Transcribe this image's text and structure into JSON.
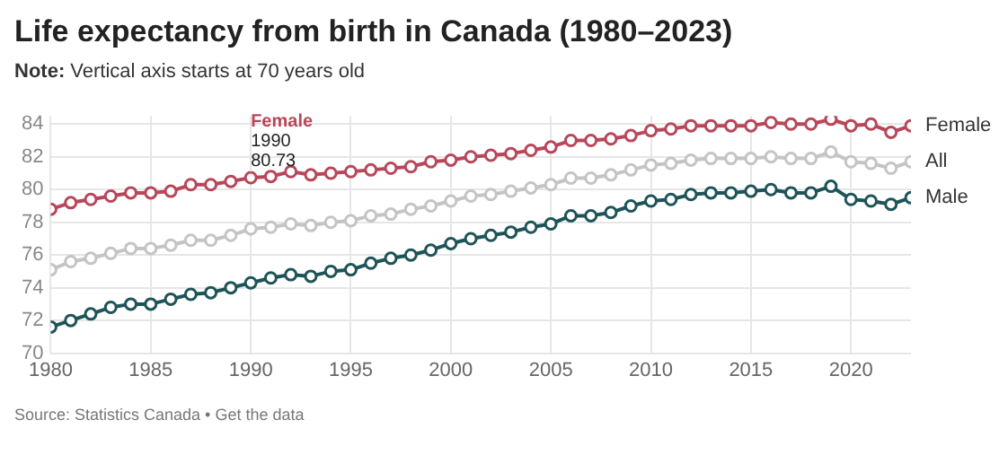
{
  "chart_data": {
    "type": "line",
    "title": "Life expectancy from birth in Canada (1980–2023)",
    "subtitle": "Note: Vertical axis starts at 70 years old",
    "x": [
      1980,
      1981,
      1982,
      1983,
      1984,
      1985,
      1986,
      1987,
      1988,
      1989,
      1990,
      1991,
      1992,
      1993,
      1994,
      1995,
      1996,
      1997,
      1998,
      1999,
      2000,
      2001,
      2002,
      2003,
      2004,
      2005,
      2006,
      2007,
      2008,
      2009,
      2010,
      2011,
      2012,
      2013,
      2014,
      2015,
      2016,
      2017,
      2018,
      2019,
      2020,
      2021,
      2022,
      2023
    ],
    "series": [
      {
        "name": "Female",
        "color": "#b8475a",
        "values": [
          78.8,
          79.2,
          79.4,
          79.6,
          79.8,
          79.8,
          79.9,
          80.3,
          80.3,
          80.5,
          80.73,
          80.8,
          81.1,
          80.9,
          81.0,
          81.1,
          81.2,
          81.3,
          81.4,
          81.7,
          81.8,
          82.0,
          82.1,
          82.2,
          82.4,
          82.6,
          83.0,
          83.0,
          83.1,
          83.3,
          83.6,
          83.7,
          83.9,
          83.9,
          83.9,
          83.9,
          84.1,
          84.0,
          84.0,
          84.3,
          83.9,
          84.0,
          83.5,
          83.9
        ]
      },
      {
        "name": "All",
        "color": "#c4c4c4",
        "values": [
          75.1,
          75.6,
          75.8,
          76.1,
          76.4,
          76.4,
          76.6,
          76.9,
          76.9,
          77.2,
          77.6,
          77.7,
          77.9,
          77.8,
          78.0,
          78.1,
          78.4,
          78.5,
          78.8,
          79.0,
          79.3,
          79.6,
          79.7,
          79.9,
          80.1,
          80.3,
          80.7,
          80.7,
          80.9,
          81.2,
          81.5,
          81.6,
          81.8,
          81.9,
          81.9,
          81.9,
          82.0,
          81.9,
          81.9,
          82.3,
          81.7,
          81.6,
          81.3,
          81.7
        ]
      },
      {
        "name": "Male",
        "color": "#1e5458",
        "values": [
          71.6,
          72.0,
          72.4,
          72.8,
          73.0,
          73.0,
          73.3,
          73.6,
          73.7,
          74.0,
          74.3,
          74.6,
          74.8,
          74.7,
          75.0,
          75.1,
          75.5,
          75.8,
          76.0,
          76.3,
          76.7,
          77.0,
          77.2,
          77.4,
          77.7,
          77.9,
          78.4,
          78.4,
          78.6,
          79.0,
          79.3,
          79.4,
          79.7,
          79.8,
          79.8,
          79.9,
          80.0,
          79.8,
          79.8,
          80.2,
          79.4,
          79.3,
          79.1,
          79.5
        ]
      }
    ],
    "xlim": [
      1980,
      2023
    ],
    "xticks": [
      1980,
      1985,
      1990,
      1995,
      2000,
      2005,
      2010,
      2015,
      2020
    ],
    "ylim": [
      70,
      84.5
    ],
    "yticks": [
      70,
      72,
      74,
      76,
      78,
      80,
      82,
      84
    ],
    "grid": true,
    "legend": false,
    "marker": "circle",
    "line_style": "solid",
    "annotations": [
      {
        "text": "Female\n1990\n80.73",
        "x": 1990,
        "y": 80.73
      },
      "Source: Statistics Canada • Get the data"
    ]
  }
}
